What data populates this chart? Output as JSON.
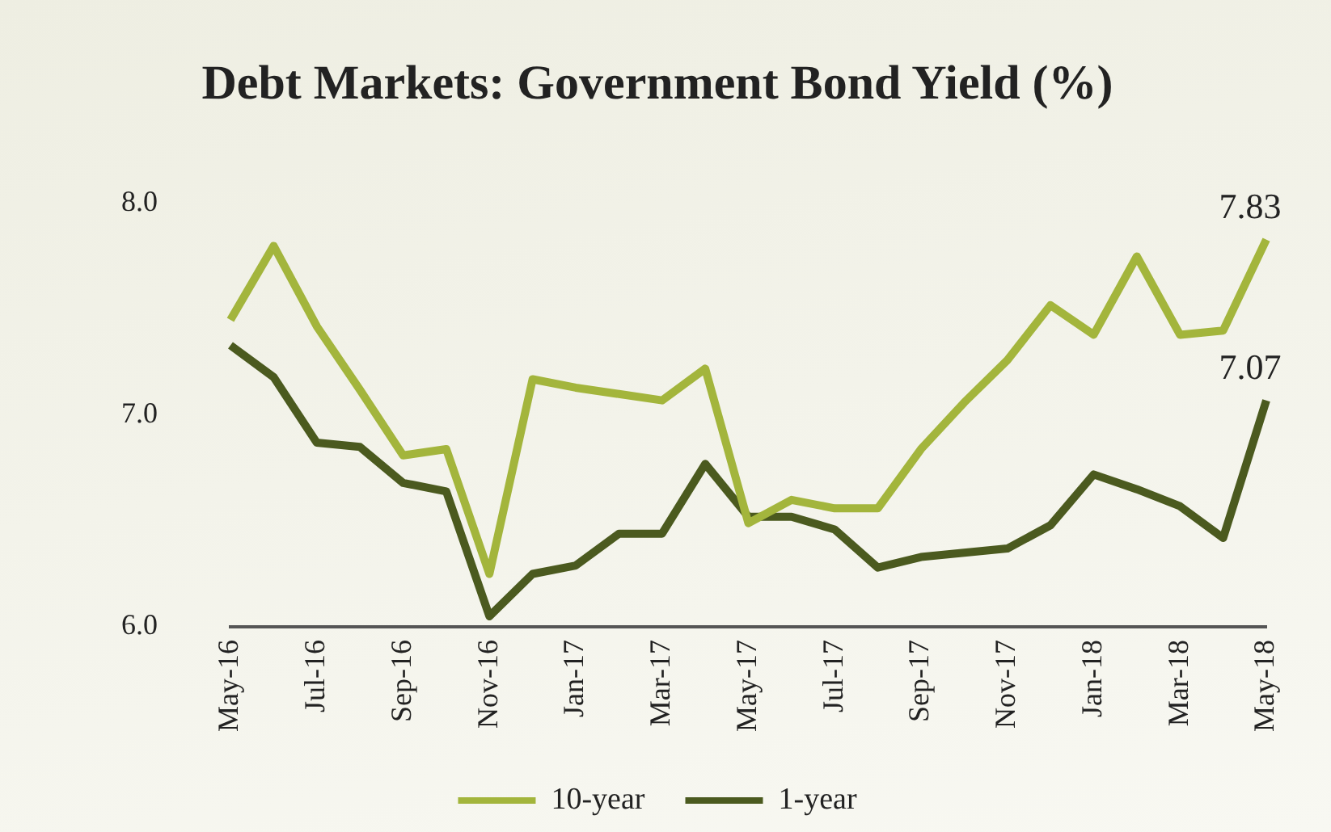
{
  "chart_data": {
    "type": "line",
    "title": "Debt Markets: Government Bond Yield (%)",
    "categories": [
      "May-16",
      null,
      "Jul-16",
      null,
      "Sep-16",
      null,
      "Nov-16",
      null,
      "Jan-17",
      null,
      "Mar-17",
      null,
      "May-17",
      null,
      "Jul-17",
      null,
      "Sep-17",
      null,
      "Nov-17",
      null,
      "Jan-18",
      null,
      "Mar-18",
      null,
      "May-18"
    ],
    "series": [
      {
        "name": "10-year",
        "color": "#a3b53c",
        "values": [
          7.45,
          7.8,
          7.42,
          7.12,
          6.81,
          6.84,
          6.25,
          7.17,
          7.13,
          7.1,
          7.07,
          7.22,
          6.49,
          6.6,
          6.56,
          6.56,
          6.84,
          7.06,
          7.26,
          7.52,
          7.38,
          7.75,
          7.38,
          7.4,
          7.83
        ],
        "value_labels": [
          null,
          null,
          null,
          null,
          null,
          null,
          null,
          null,
          null,
          null,
          null,
          null,
          null,
          null,
          null,
          null,
          null,
          null,
          null,
          null,
          null,
          null,
          null,
          null,
          "7.83"
        ]
      },
      {
        "name": "1-year",
        "color": "#4b5a1f",
        "values": [
          7.33,
          7.18,
          6.87,
          6.85,
          6.68,
          6.64,
          6.05,
          6.25,
          6.29,
          6.44,
          6.44,
          6.77,
          6.52,
          6.52,
          6.46,
          6.28,
          6.33,
          6.35,
          6.37,
          6.48,
          6.72,
          6.65,
          6.57,
          6.42,
          7.07
        ],
        "value_labels": [
          null,
          null,
          null,
          null,
          null,
          null,
          null,
          null,
          null,
          null,
          null,
          null,
          null,
          null,
          null,
          null,
          null,
          null,
          null,
          null,
          null,
          null,
          null,
          null,
          "7.07"
        ]
      }
    ],
    "ylim": [
      6.0,
      8.0
    ],
    "yticks": [
      {
        "value": 6,
        "label": "6.0"
      },
      {
        "value": 7,
        "label": "7.0"
      },
      {
        "value": 8,
        "label": "8.0"
      }
    ],
    "grid": false,
    "legend": "bottom",
    "marker": "none",
    "line_style": "solid"
  }
}
